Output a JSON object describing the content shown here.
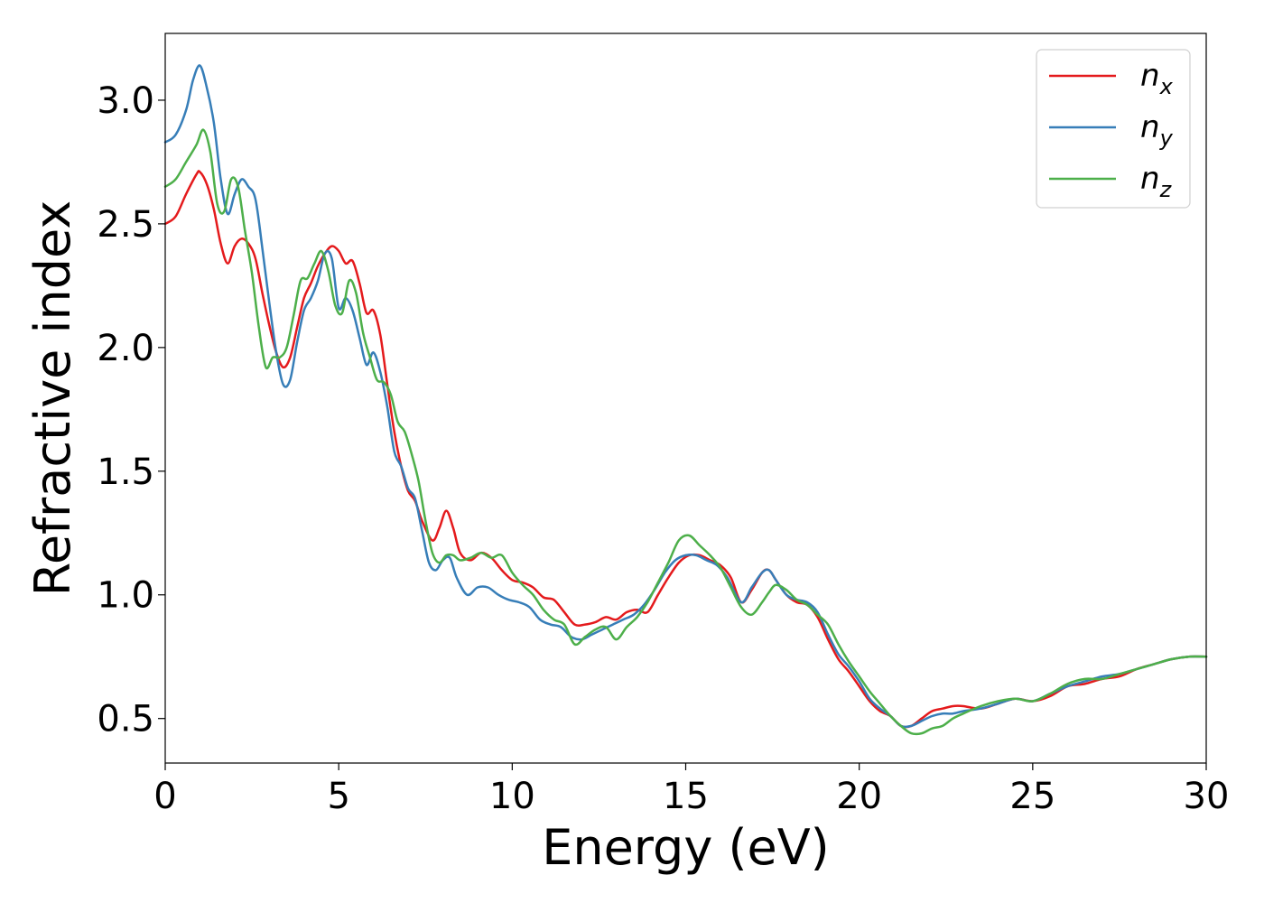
{
  "chart_data": {
    "type": "line",
    "title": "",
    "xlabel": "Energy (eV)",
    "ylabel": "Refractive index",
    "xlim": [
      0,
      30
    ],
    "ylim": [
      0.32,
      3.27
    ],
    "xticks": [
      0,
      5,
      10,
      15,
      20,
      25,
      30
    ],
    "xtick_labels": [
      "0",
      "5",
      "10",
      "15",
      "20",
      "25",
      "30"
    ],
    "yticks": [
      0.5,
      1.0,
      1.5,
      2.0,
      2.5,
      3.0
    ],
    "ytick_labels": [
      "0.5",
      "1.0",
      "1.5",
      "2.0",
      "2.5",
      "3.0"
    ],
    "grid": false,
    "legend_position": "top-right",
    "series": [
      {
        "name": "n_x",
        "name_main": "n",
        "name_sub": "x",
        "color": "#e41a1c",
        "x": [
          0,
          0.3,
          0.6,
          0.9,
          1.0,
          1.2,
          1.4,
          1.6,
          1.8,
          2.0,
          2.2,
          2.4,
          2.6,
          2.8,
          3.0,
          3.2,
          3.4,
          3.6,
          3.8,
          4.0,
          4.2,
          4.4,
          4.6,
          4.8,
          5.0,
          5.2,
          5.4,
          5.6,
          5.8,
          6.0,
          6.2,
          6.4,
          6.6,
          6.8,
          7.0,
          7.2,
          7.4,
          7.7,
          7.9,
          8.1,
          8.3,
          8.5,
          8.8,
          9.1,
          9.4,
          9.7,
          10.0,
          10.3,
          10.6,
          10.9,
          11.2,
          11.5,
          11.8,
          12.1,
          12.4,
          12.7,
          13.0,
          13.3,
          13.6,
          13.9,
          14.2,
          14.5,
          14.8,
          15.1,
          15.4,
          15.7,
          16.0,
          16.3,
          16.6,
          16.9,
          17.2,
          17.4,
          17.6,
          17.9,
          18.2,
          18.5,
          18.8,
          19.1,
          19.4,
          19.7,
          20.0,
          20.3,
          20.6,
          20.9,
          21.2,
          21.5,
          21.8,
          22.1,
          22.4,
          22.7,
          23.0,
          23.5,
          24.0,
          24.5,
          25.0,
          25.5,
          26.0,
          26.5,
          27.0,
          27.5,
          28.0,
          28.5,
          29.0,
          29.5,
          30.0
        ],
        "y": [
          2.5,
          2.53,
          2.62,
          2.7,
          2.71,
          2.66,
          2.56,
          2.42,
          2.34,
          2.41,
          2.44,
          2.42,
          2.36,
          2.22,
          2.09,
          1.98,
          1.92,
          1.96,
          2.08,
          2.2,
          2.26,
          2.33,
          2.38,
          2.41,
          2.39,
          2.34,
          2.35,
          2.26,
          2.14,
          2.15,
          2.05,
          1.85,
          1.66,
          1.52,
          1.42,
          1.38,
          1.3,
          1.22,
          1.27,
          1.34,
          1.27,
          1.17,
          1.14,
          1.17,
          1.15,
          1.1,
          1.06,
          1.05,
          1.03,
          0.99,
          0.98,
          0.93,
          0.88,
          0.88,
          0.89,
          0.91,
          0.9,
          0.93,
          0.94,
          0.93,
          1.0,
          1.07,
          1.13,
          1.16,
          1.16,
          1.14,
          1.12,
          1.07,
          0.97,
          1.02,
          1.09,
          1.1,
          1.06,
          1.0,
          0.97,
          0.96,
          0.91,
          0.82,
          0.74,
          0.69,
          0.63,
          0.57,
          0.53,
          0.51,
          0.47,
          0.47,
          0.5,
          0.53,
          0.54,
          0.55,
          0.55,
          0.54,
          0.56,
          0.58,
          0.57,
          0.59,
          0.63,
          0.64,
          0.66,
          0.67,
          0.7,
          0.72,
          0.74,
          0.75,
          0.75
        ]
      },
      {
        "name": "n_y",
        "name_main": "n",
        "name_sub": "y",
        "color": "#377eb8",
        "x": [
          0,
          0.3,
          0.6,
          0.8,
          1.0,
          1.2,
          1.4,
          1.6,
          1.8,
          2.0,
          2.2,
          2.4,
          2.6,
          2.8,
          3.0,
          3.2,
          3.4,
          3.6,
          3.8,
          4.0,
          4.2,
          4.4,
          4.6,
          4.8,
          5.0,
          5.2,
          5.4,
          5.6,
          5.8,
          6.0,
          6.2,
          6.4,
          6.6,
          6.8,
          7.0,
          7.2,
          7.4,
          7.6,
          7.8,
          8.0,
          8.2,
          8.4,
          8.7,
          9.0,
          9.3,
          9.6,
          9.9,
          10.2,
          10.5,
          10.8,
          11.1,
          11.4,
          11.7,
          12.0,
          12.3,
          12.6,
          12.9,
          13.2,
          13.5,
          13.8,
          14.1,
          14.4,
          14.7,
          15.0,
          15.3,
          15.6,
          15.9,
          16.2,
          16.6,
          16.9,
          17.2,
          17.4,
          17.6,
          17.9,
          18.2,
          18.5,
          18.8,
          19.1,
          19.4,
          19.7,
          20.0,
          20.3,
          20.6,
          20.9,
          21.2,
          21.5,
          21.8,
          22.1,
          22.4,
          22.7,
          23.0,
          23.5,
          24.0,
          24.5,
          25.0,
          25.5,
          26.0,
          26.5,
          27.0,
          27.5,
          28.0,
          28.5,
          29.0,
          29.5,
          30.0
        ],
        "y": [
          2.83,
          2.86,
          2.96,
          3.08,
          3.14,
          3.05,
          2.91,
          2.68,
          2.54,
          2.62,
          2.68,
          2.65,
          2.6,
          2.4,
          2.18,
          1.98,
          1.85,
          1.87,
          2.02,
          2.15,
          2.2,
          2.27,
          2.38,
          2.36,
          2.16,
          2.2,
          2.15,
          2.04,
          1.93,
          1.98,
          1.9,
          1.76,
          1.58,
          1.52,
          1.43,
          1.39,
          1.26,
          1.13,
          1.1,
          1.14,
          1.15,
          1.07,
          1.0,
          1.03,
          1.03,
          1.0,
          0.98,
          0.97,
          0.95,
          0.9,
          0.88,
          0.87,
          0.83,
          0.82,
          0.84,
          0.86,
          0.88,
          0.9,
          0.92,
          0.96,
          1.02,
          1.09,
          1.14,
          1.16,
          1.16,
          1.14,
          1.12,
          1.07,
          0.97,
          1.03,
          1.09,
          1.1,
          1.06,
          1.0,
          0.98,
          0.97,
          0.93,
          0.84,
          0.76,
          0.71,
          0.65,
          0.58,
          0.54,
          0.51,
          0.47,
          0.47,
          0.49,
          0.51,
          0.52,
          0.52,
          0.53,
          0.54,
          0.56,
          0.58,
          0.57,
          0.6,
          0.63,
          0.65,
          0.67,
          0.68,
          0.7,
          0.72,
          0.74,
          0.75,
          0.75
        ]
      },
      {
        "name": "n_z",
        "name_main": "n",
        "name_sub": "z",
        "color": "#4daf4a",
        "x": [
          0,
          0.3,
          0.6,
          0.9,
          1.1,
          1.3,
          1.5,
          1.7,
          1.9,
          2.1,
          2.3,
          2.5,
          2.7,
          2.9,
          3.1,
          3.3,
          3.5,
          3.7,
          3.9,
          4.1,
          4.3,
          4.5,
          4.7,
          4.9,
          5.1,
          5.3,
          5.5,
          5.7,
          5.9,
          6.1,
          6.3,
          6.5,
          6.7,
          6.9,
          7.1,
          7.3,
          7.5,
          7.7,
          7.9,
          8.1,
          8.3,
          8.5,
          8.8,
          9.1,
          9.4,
          9.7,
          10.0,
          10.3,
          10.6,
          10.9,
          11.2,
          11.5,
          11.8,
          12.1,
          12.4,
          12.7,
          13.0,
          13.3,
          13.6,
          13.9,
          14.2,
          14.5,
          14.8,
          15.1,
          15.4,
          15.7,
          16.0,
          16.3,
          16.6,
          16.9,
          17.2,
          17.4,
          17.6,
          17.9,
          18.2,
          18.5,
          18.8,
          19.1,
          19.4,
          19.7,
          20.0,
          20.3,
          20.6,
          20.9,
          21.2,
          21.5,
          21.8,
          22.1,
          22.4,
          22.7,
          23.0,
          23.5,
          24.0,
          24.5,
          25.0,
          25.5,
          26.0,
          26.5,
          27.0,
          27.5,
          28.0,
          28.5,
          29.0,
          29.5,
          30.0
        ],
        "y": [
          2.65,
          2.68,
          2.75,
          2.82,
          2.88,
          2.79,
          2.58,
          2.55,
          2.68,
          2.65,
          2.47,
          2.3,
          2.08,
          1.92,
          1.96,
          1.96,
          2.0,
          2.13,
          2.27,
          2.28,
          2.34,
          2.39,
          2.31,
          2.17,
          2.14,
          2.27,
          2.22,
          2.06,
          1.96,
          1.87,
          1.86,
          1.81,
          1.7,
          1.66,
          1.57,
          1.46,
          1.3,
          1.17,
          1.13,
          1.16,
          1.16,
          1.14,
          1.15,
          1.17,
          1.15,
          1.16,
          1.09,
          1.04,
          1.0,
          0.94,
          0.9,
          0.88,
          0.8,
          0.83,
          0.86,
          0.87,
          0.82,
          0.87,
          0.91,
          0.97,
          1.05,
          1.13,
          1.22,
          1.24,
          1.2,
          1.16,
          1.11,
          1.03,
          0.95,
          0.92,
          0.97,
          1.01,
          1.04,
          1.02,
          0.98,
          0.96,
          0.92,
          0.88,
          0.8,
          0.73,
          0.67,
          0.61,
          0.56,
          0.51,
          0.47,
          0.44,
          0.44,
          0.46,
          0.47,
          0.5,
          0.52,
          0.55,
          0.57,
          0.58,
          0.57,
          0.6,
          0.64,
          0.66,
          0.66,
          0.68,
          0.7,
          0.72,
          0.74,
          0.75,
          0.75
        ]
      }
    ]
  }
}
